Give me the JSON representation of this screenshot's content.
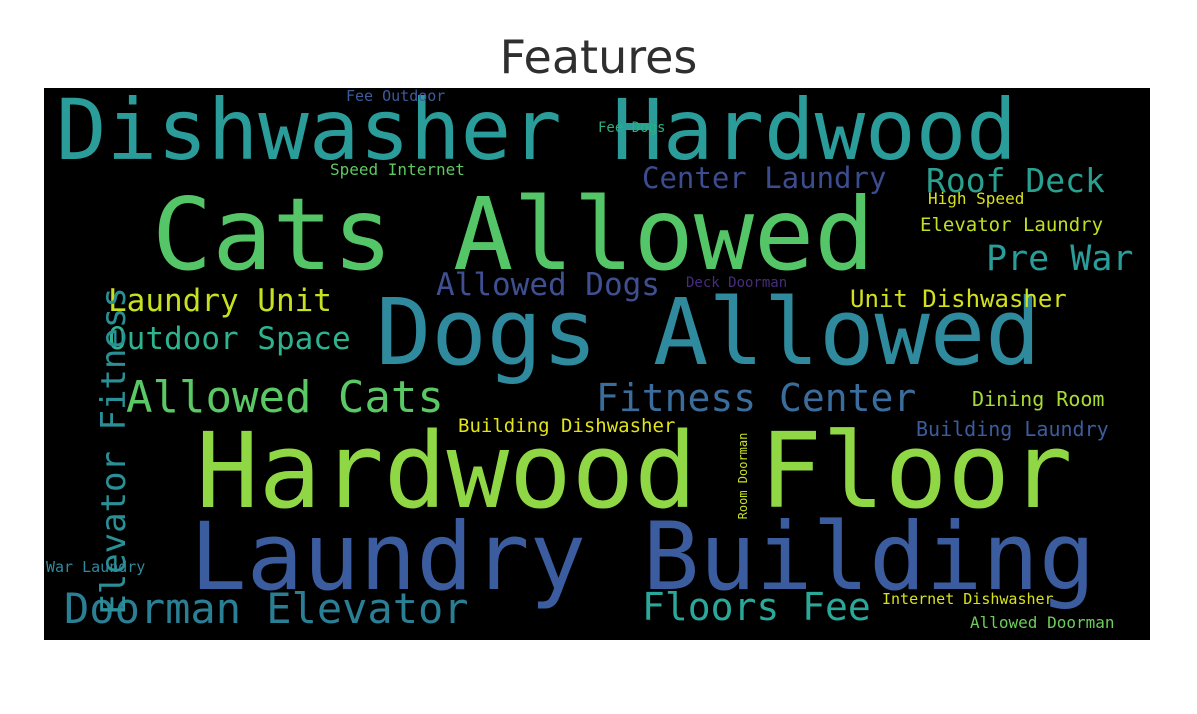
{
  "figure": {
    "title": "Features"
  },
  "wordcloud": {
    "words": [
      {
        "text": "Dishwasher Hardwood",
        "color": "#2a9d9b"
      },
      {
        "text": "Cats Allowed",
        "color": "#55c667"
      },
      {
        "text": "Dogs Allowed",
        "color": "#2f8a9e"
      },
      {
        "text": "Hardwood Floor",
        "color": "#8fd744"
      },
      {
        "text": "Laundry Building",
        "color": "#3b5c9e"
      },
      {
        "text": "Elevator Fitness",
        "color": "#2a8f96"
      },
      {
        "text": "Doorman Elevator",
        "color": "#2a7f95"
      },
      {
        "text": "Allowed Cats",
        "color": "#5ac864"
      },
      {
        "text": "Fitness Center",
        "color": "#3a6d9b"
      },
      {
        "text": "Floors Fee",
        "color": "#2aa89a"
      },
      {
        "text": "Laundry Unit",
        "color": "#c7e020"
      },
      {
        "text": "Outdoor Space",
        "color": "#2fb38f"
      },
      {
        "text": "Allowed Dogs",
        "color": "#3f4f91"
      },
      {
        "text": "Center Laundry",
        "color": "#3b4d8f"
      },
      {
        "text": "Roof Deck",
        "color": "#2aa090"
      },
      {
        "text": "Pre War",
        "color": "#2a9d9b"
      },
      {
        "text": "Unit Dishwasher",
        "color": "#d1e11c"
      },
      {
        "text": "Elevator Laundry",
        "color": "#c2df23"
      },
      {
        "text": "High Speed",
        "color": "#d7e21a"
      },
      {
        "text": "Dining Room",
        "color": "#a8db34"
      },
      {
        "text": "Building Laundry",
        "color": "#3b5c9e"
      },
      {
        "text": "Building Dishwasher",
        "color": "#e2e418"
      },
      {
        "text": "Internet Dishwasher",
        "color": "#d7e21a"
      },
      {
        "text": "Allowed Doorman",
        "color": "#6ccd5a"
      },
      {
        "text": "War Laundry",
        "color": "#2f8a9e"
      },
      {
        "text": "Fee Outdoor",
        "color": "#3b5c9e"
      },
      {
        "text": "Fee Dogs",
        "color": "#2ab07f"
      },
      {
        "text": "Speed Internet",
        "color": "#5ec962"
      },
      {
        "text": "Deck Doorman",
        "color": "#472d7b"
      },
      {
        "text": "Room Doorman",
        "color": "#c8e020"
      }
    ]
  }
}
